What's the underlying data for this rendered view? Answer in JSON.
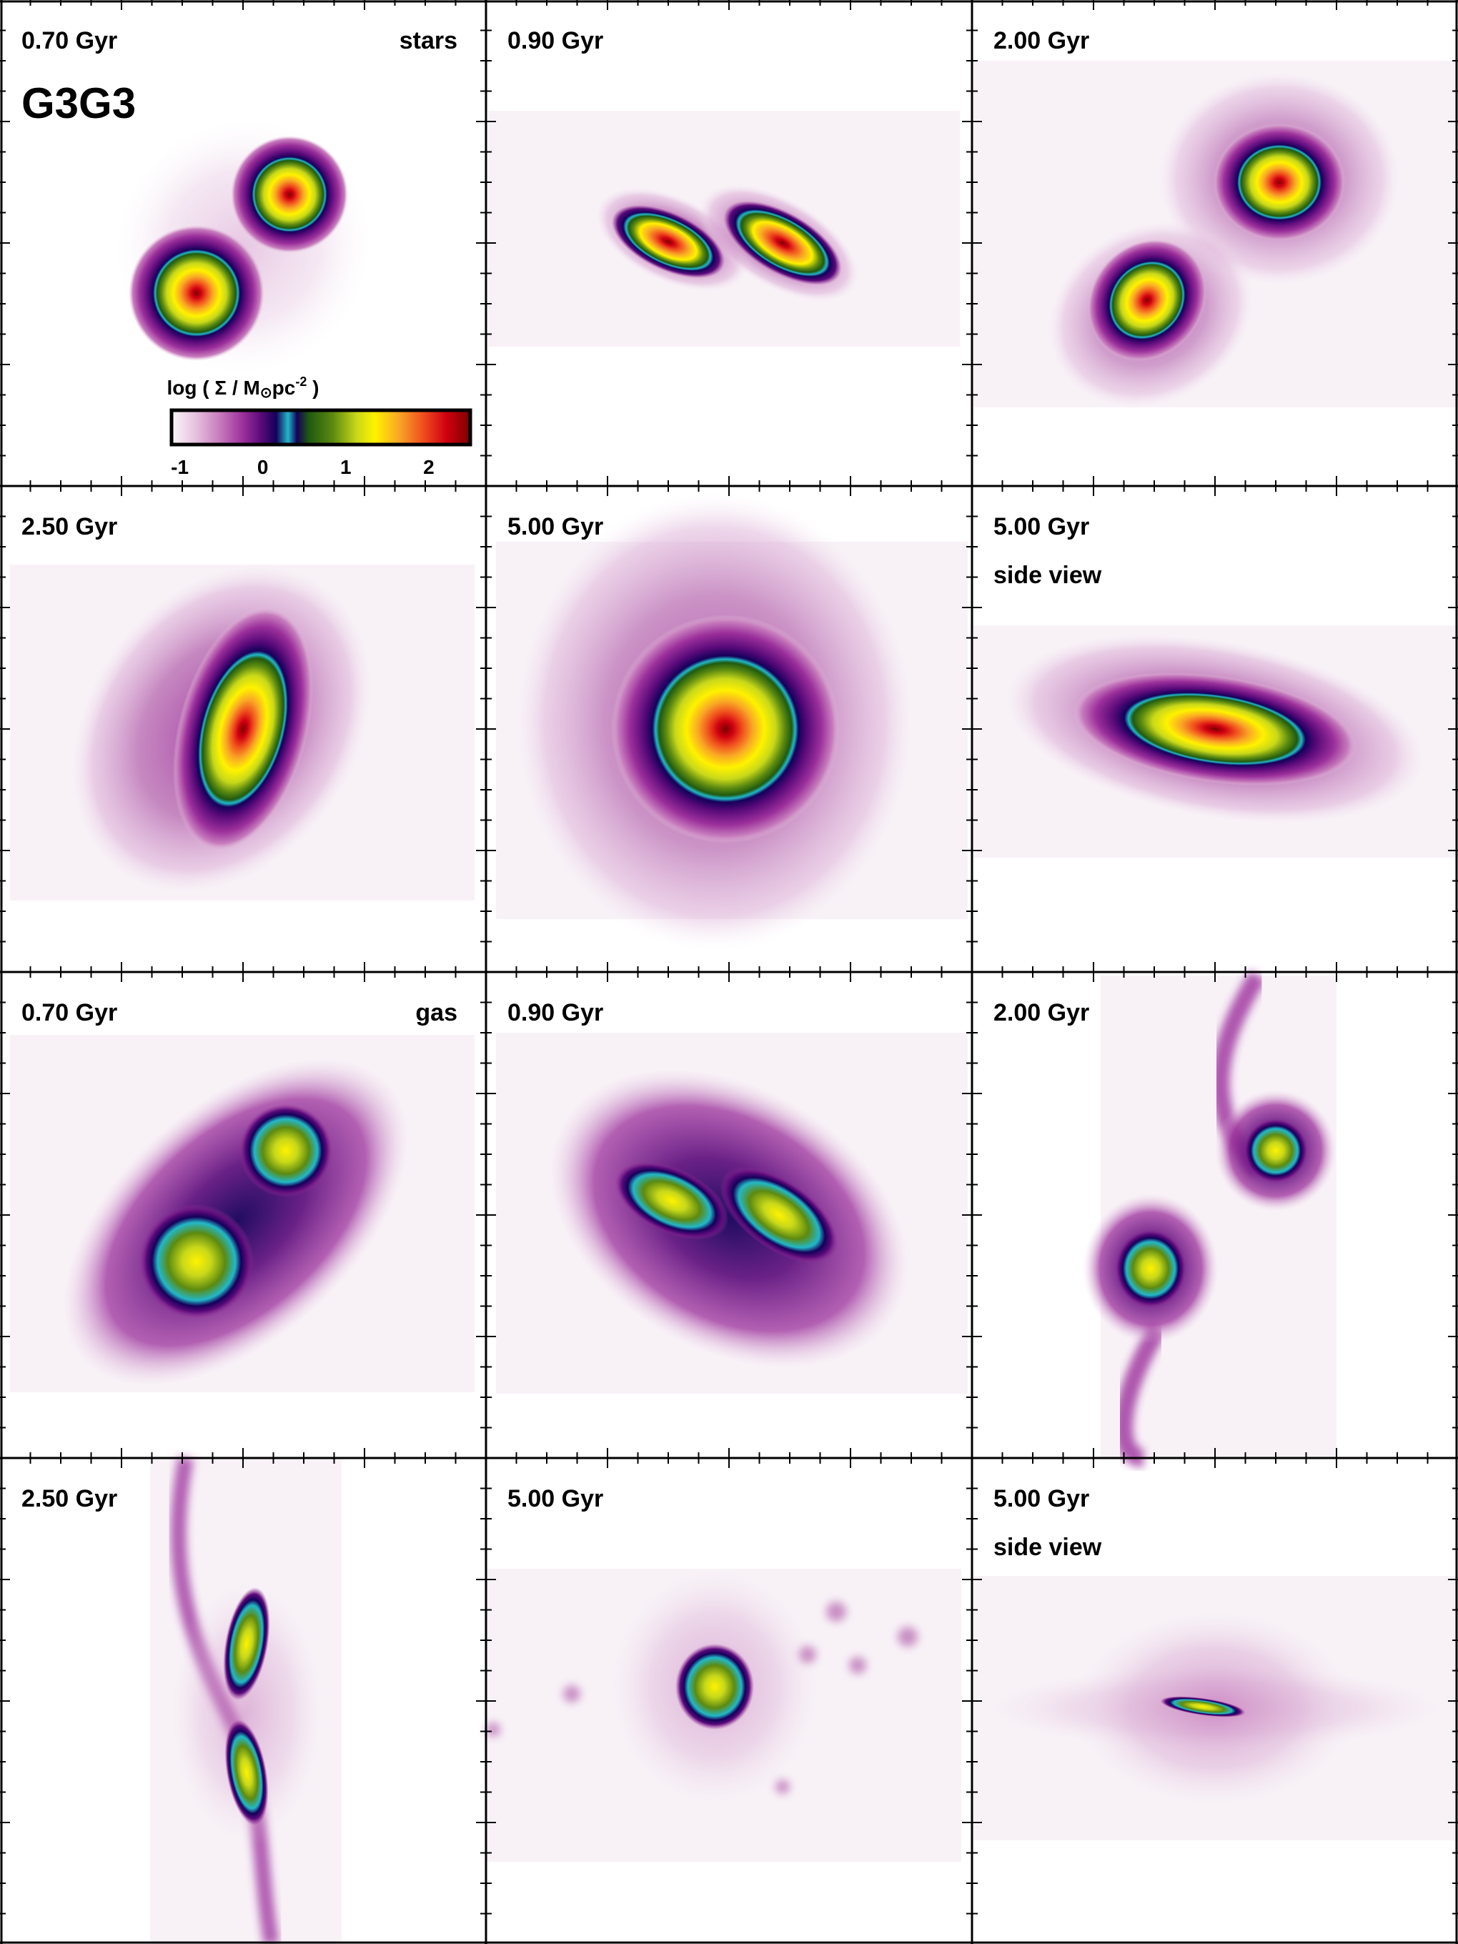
{
  "figure": {
    "title": "G3G3",
    "colorbar": {
      "label_prefix": "log ( Σ / M",
      "label_sun": "⊙",
      "label_unit": "pc",
      "label_exp": "-2",
      "label_suffix": " )",
      "ticks": [
        "-1",
        "0",
        "1",
        "2"
      ],
      "range": [
        -1.1,
        2.5
      ],
      "colors": [
        "#faf6f9",
        "#e6c2df",
        "#c77dbd",
        "#9b2f9b",
        "#5a0a7a",
        "#14005a",
        "#22b8c8",
        "#1f5a10",
        "#5c8a10",
        "#c8d81a",
        "#fff200",
        "#f9a825",
        "#f0501e",
        "#d00010",
        "#7a0000"
      ]
    },
    "panels": [
      {
        "id": "stars-0.70",
        "time": "0.70 Gyr",
        "tag": "stars",
        "extra": ""
      },
      {
        "id": "stars-0.90",
        "time": "0.90 Gyr",
        "tag": "",
        "extra": ""
      },
      {
        "id": "stars-2.00",
        "time": "2.00 Gyr",
        "tag": "",
        "extra": ""
      },
      {
        "id": "stars-2.50",
        "time": "2.50 Gyr",
        "tag": "",
        "extra": ""
      },
      {
        "id": "stars-5.00",
        "time": "5.00 Gyr",
        "tag": "",
        "extra": ""
      },
      {
        "id": "stars-5.00-side",
        "time": "5.00 Gyr",
        "tag": "",
        "extra": "side view"
      },
      {
        "id": "gas-0.70",
        "time": "0.70 Gyr",
        "tag": "gas",
        "extra": ""
      },
      {
        "id": "gas-0.90",
        "time": "0.90 Gyr",
        "tag": "",
        "extra": ""
      },
      {
        "id": "gas-2.00",
        "time": "2.00 Gyr",
        "tag": "",
        "extra": ""
      },
      {
        "id": "gas-2.50",
        "time": "2.50 Gyr",
        "tag": "",
        "extra": ""
      },
      {
        "id": "gas-5.00",
        "time": "5.00 Gyr",
        "tag": "",
        "extra": ""
      },
      {
        "id": "gas-5.00-side",
        "time": "5.00 Gyr",
        "tag": "",
        "extra": "side view"
      }
    ]
  }
}
